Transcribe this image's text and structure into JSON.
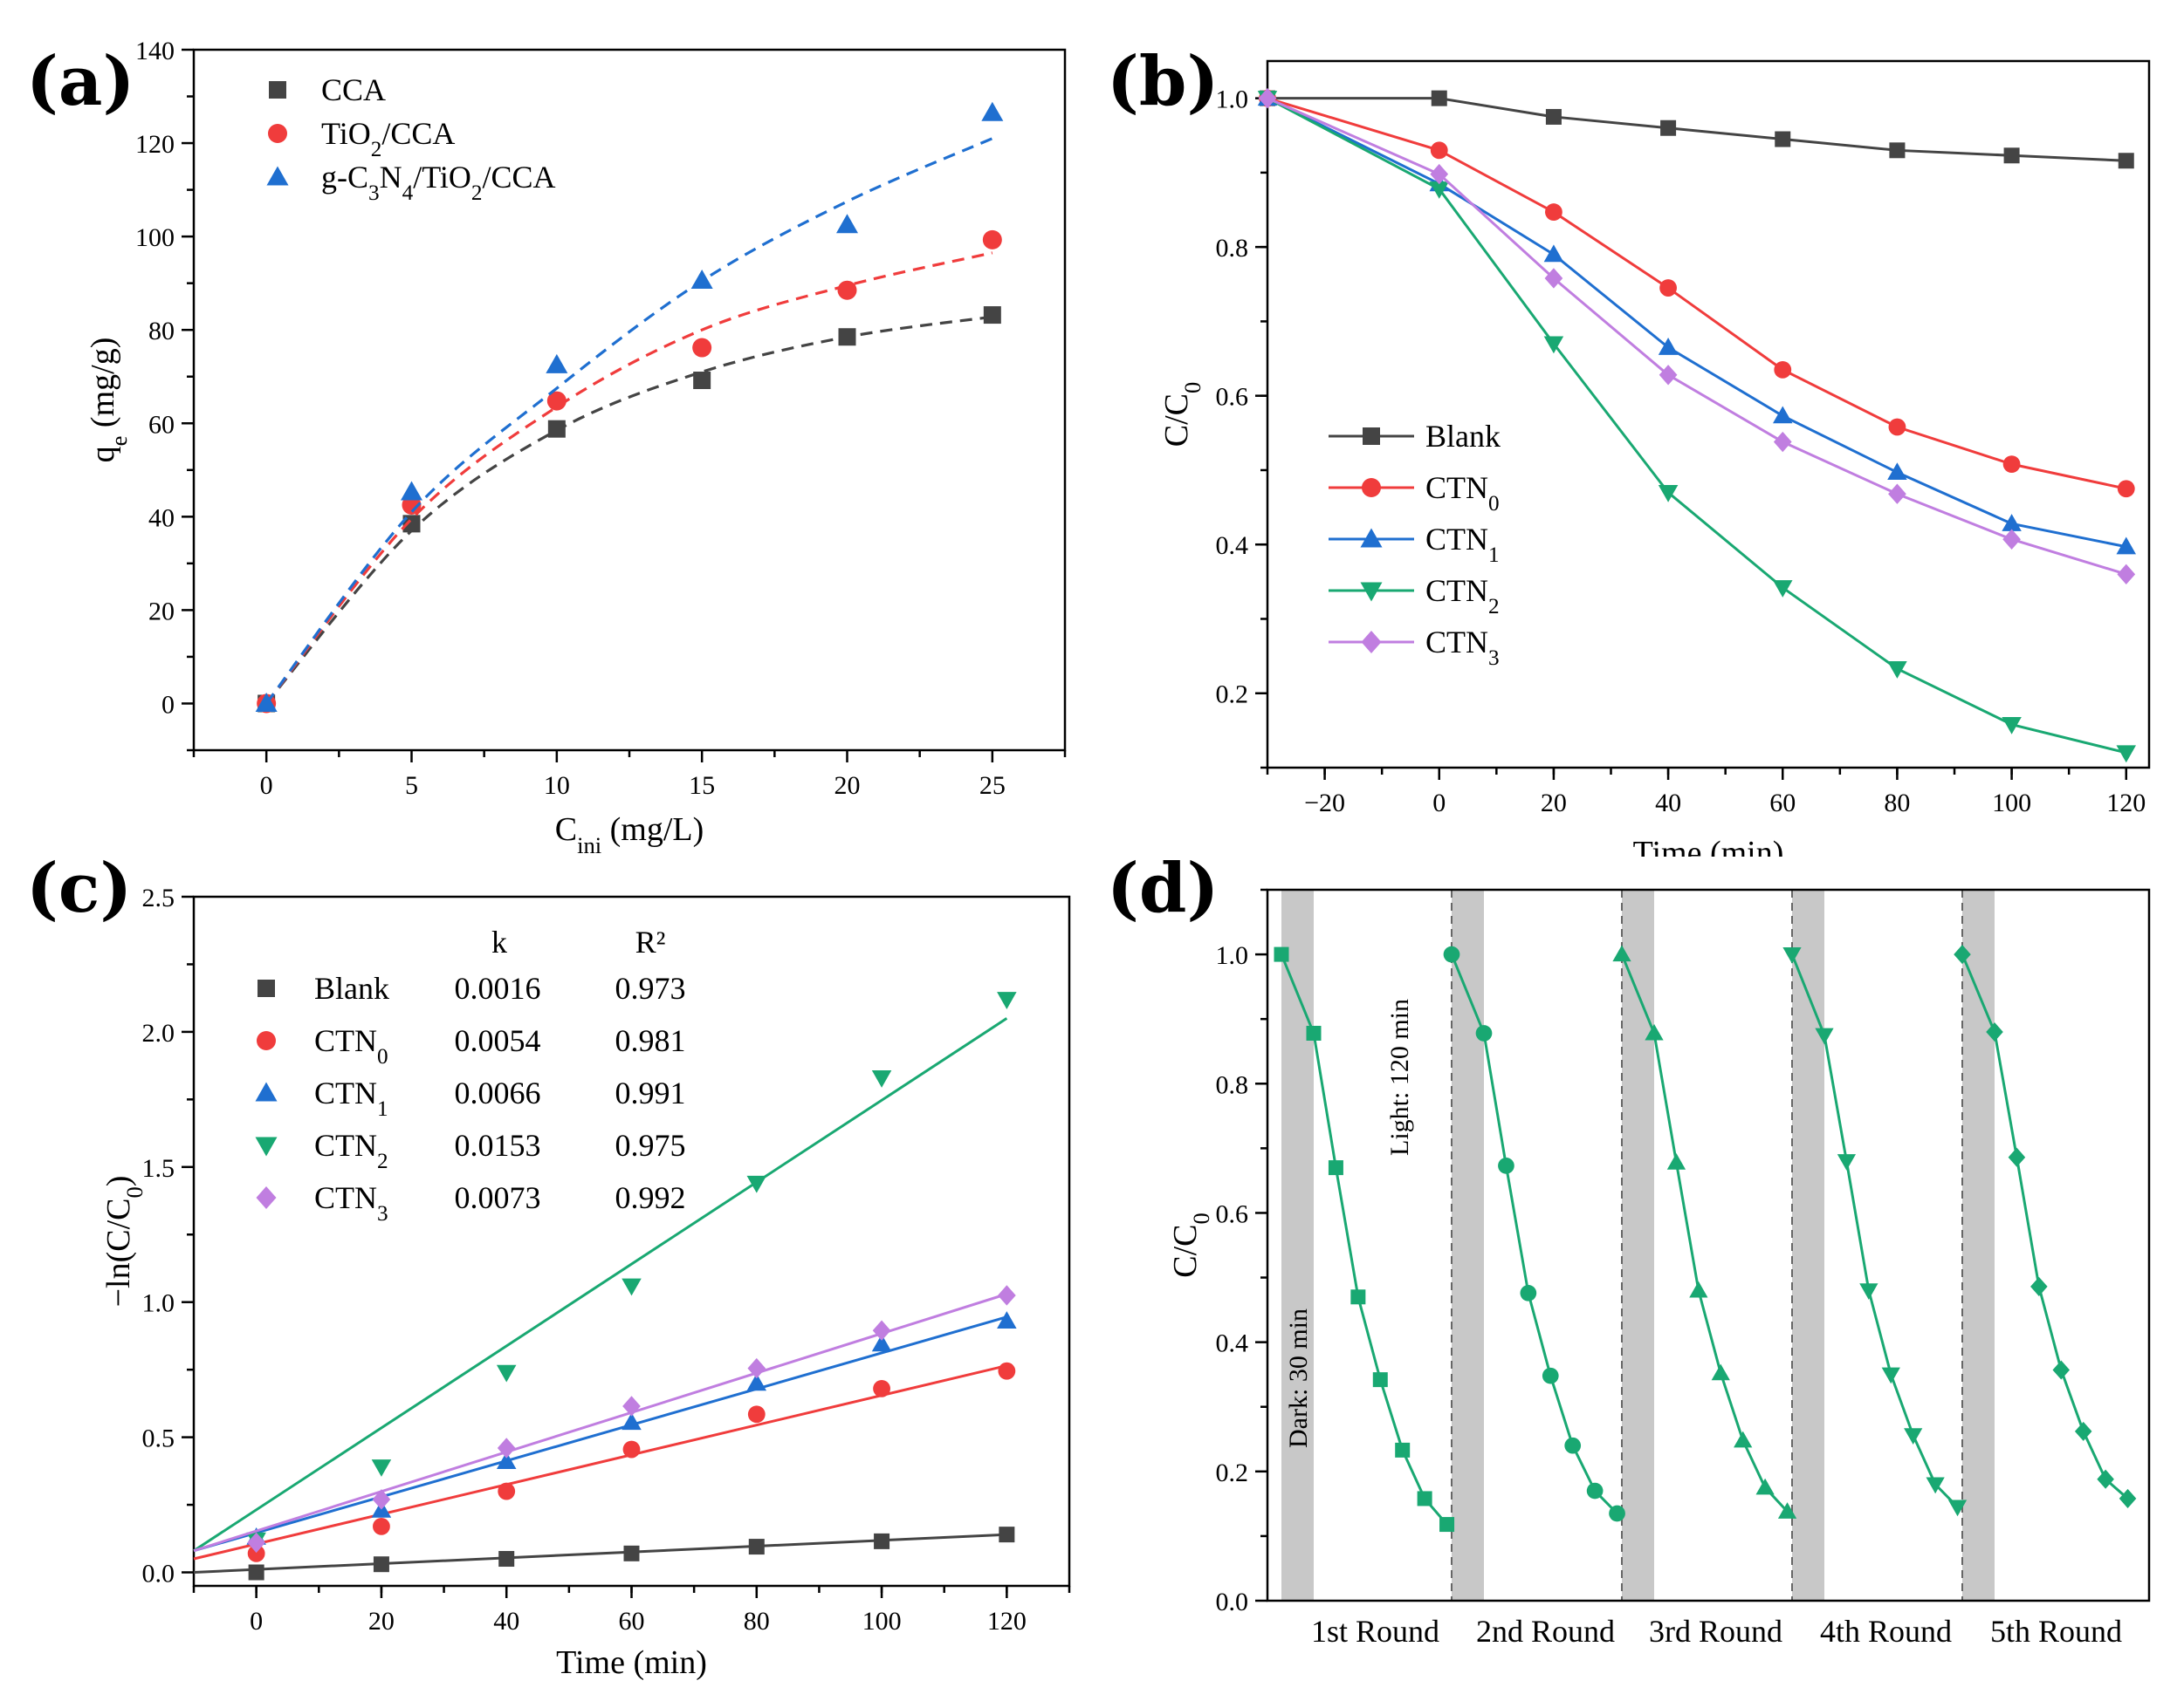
{
  "colors": {
    "black": "#444444",
    "red": "#f03c3c",
    "blue": "#1f6fd0",
    "green": "#19a872",
    "purple": "#c07ee0",
    "shade": "#c8c8c8"
  },
  "chart_data": [
    {
      "id": "a",
      "panel_label": "(a)",
      "type": "scatter",
      "xlabel": "C_ini (mg/L)",
      "ylabel": "q_e (mg/g)",
      "xlim": [
        -2.5,
        27.5
      ],
      "ylim": [
        -10,
        140
      ],
      "xticks": [
        "0",
        "5",
        "10",
        "15",
        "20",
        "25"
      ],
      "yticks": [
        "0",
        "20",
        "40",
        "60",
        "80",
        "100",
        "120",
        "140"
      ],
      "x": [
        0,
        5,
        10,
        15,
        20,
        25
      ],
      "legend_position": "top-left",
      "series": [
        {
          "name": "CCA",
          "marker": "square",
          "color": "#444444",
          "values": [
            0,
            38.5,
            58.8,
            69.2,
            78.5,
            83.2
          ],
          "fit": [
            0,
            37.0,
            58.5,
            71.0,
            78.5,
            82.8
          ]
        },
        {
          "name": "TiO2/CCA",
          "marker": "circle",
          "color": "#f03c3c",
          "values": [
            0,
            42.5,
            64.8,
            76.2,
            88.5,
            99.3
          ],
          "fit": [
            0,
            39.5,
            63.5,
            80.0,
            89.5,
            96.5
          ]
        },
        {
          "name": "g-C3N4/TiO2/CCA",
          "marker": "triangle-up",
          "color": "#1f6fd0",
          "values": [
            0,
            45.3,
            72.5,
            90.6,
            102.5,
            126.5
          ],
          "fit": [
            0,
            41.0,
            67.5,
            90.5,
            107.5,
            121.0
          ]
        }
      ]
    },
    {
      "id": "b",
      "panel_label": "(b)",
      "type": "line",
      "xlabel": "Time (min)",
      "ylabel": "C/C0",
      "xlim": [
        -30,
        124
      ],
      "ylim": [
        0.1,
        1.05
      ],
      "xticks": [
        "−20",
        "0",
        "20",
        "40",
        "60",
        "80",
        "100",
        "120"
      ],
      "yticks": [
        "0.2",
        "0.4",
        "0.6",
        "0.8",
        "1.0"
      ],
      "x": [
        -30,
        0,
        20,
        40,
        60,
        80,
        100,
        120
      ],
      "legend_position": "bottom-left",
      "series": [
        {
          "name": "Blank",
          "marker": "square",
          "color": "#444444",
          "values": [
            1.0,
            1.0,
            0.975,
            0.96,
            0.945,
            0.93,
            0.923,
            0.916
          ]
        },
        {
          "name": "CTN0",
          "marker": "circle",
          "color": "#f03c3c",
          "values": [
            1.0,
            0.93,
            0.847,
            0.745,
            0.635,
            0.558,
            0.508,
            0.475
          ]
        },
        {
          "name": "CTN1",
          "marker": "triangle-up",
          "color": "#1f6fd0",
          "values": [
            1.0,
            0.885,
            0.79,
            0.665,
            0.573,
            0.497,
            0.428,
            0.397
          ]
        },
        {
          "name": "CTN2",
          "marker": "triangle-down",
          "color": "#19a872",
          "values": [
            1.0,
            0.878,
            0.67,
            0.47,
            0.342,
            0.233,
            0.158,
            0.12
          ]
        },
        {
          "name": "CTN3",
          "marker": "diamond",
          "color": "#c07ee0",
          "values": [
            1.0,
            0.898,
            0.758,
            0.628,
            0.538,
            0.468,
            0.407,
            0.36
          ]
        }
      ]
    },
    {
      "id": "c",
      "panel_label": "(c)",
      "type": "scatter",
      "xlabel": "Time (min)",
      "ylabel": "−ln(C/C0)",
      "xlim": [
        -10,
        130
      ],
      "ylim": [
        -0.05,
        2.5
      ],
      "xticks": [
        "0",
        "20",
        "40",
        "60",
        "80",
        "100",
        "120"
      ],
      "yticks": [
        "0.0",
        "0.5",
        "1.0",
        "1.5",
        "2.0",
        "2.5"
      ],
      "x": [
        0,
        20,
        40,
        60,
        80,
        100,
        120
      ],
      "legend_position": "top-left",
      "legend_headers": {
        "k": "k",
        "r2": "R²"
      },
      "series": [
        {
          "name": "Blank",
          "marker": "square",
          "color": "#444444",
          "k": "0.0016",
          "r2": "0.973",
          "values": [
            0.0,
            0.03,
            0.05,
            0.07,
            0.095,
            0.115,
            0.14
          ],
          "fit_line": [
            [
              -10,
              0.0
            ],
            [
              120,
              0.14
            ]
          ]
        },
        {
          "name": "CTN0",
          "marker": "circle",
          "color": "#f03c3c",
          "k": "0.0054",
          "r2": "0.981",
          "values": [
            0.07,
            0.17,
            0.3,
            0.455,
            0.585,
            0.68,
            0.745
          ],
          "fit_line": [
            [
              -10,
              0.05
            ],
            [
              120,
              0.765
            ]
          ]
        },
        {
          "name": "CTN1",
          "marker": "triangle-up",
          "color": "#1f6fd0",
          "k": "0.0066",
          "r2": "0.991",
          "values": [
            0.13,
            0.23,
            0.41,
            0.555,
            0.7,
            0.845,
            0.93
          ],
          "fit_line": [
            [
              -10,
              0.08
            ],
            [
              120,
              0.945
            ]
          ]
        },
        {
          "name": "CTN2",
          "marker": "triangle-down",
          "color": "#19a872",
          "k": "0.0153",
          "r2": "0.975",
          "values": [
            0.12,
            0.39,
            0.74,
            1.06,
            1.44,
            1.83,
            2.12
          ],
          "fit_line": [
            [
              -10,
              0.08
            ],
            [
              120,
              2.05
            ]
          ]
        },
        {
          "name": "CTN3",
          "marker": "diamond",
          "color": "#c07ee0",
          "k": "0.0073",
          "r2": "0.992",
          "values": [
            0.11,
            0.27,
            0.46,
            0.615,
            0.755,
            0.895,
            1.025
          ],
          "fit_line": [
            [
              -10,
              0.08
            ],
            [
              120,
              1.03
            ]
          ]
        }
      ]
    },
    {
      "id": "d",
      "panel_label": "(d)",
      "type": "line",
      "xlabel": "",
      "ylabel": "C/C0",
      "ylim": [
        0.0,
        1.1
      ],
      "yticks": [
        "0.0",
        "0.2",
        "0.4",
        "0.6",
        "0.8",
        "1.0"
      ],
      "color": "#19a872",
      "dark_label": "Dark: 30 min",
      "light_label": "Light: 120 min",
      "rounds": [
        {
          "label": "1st Round",
          "marker": "square",
          "values": [
            1.0,
            0.878,
            0.67,
            0.47,
            0.342,
            0.233,
            0.158,
            0.118
          ]
        },
        {
          "label": "2nd Round",
          "marker": "circle",
          "values": [
            1.0,
            0.878,
            0.673,
            0.476,
            0.348,
            0.24,
            0.17,
            0.135
          ]
        },
        {
          "label": "3rd Round",
          "marker": "triangle-up",
          "values": [
            1.0,
            0.878,
            0.678,
            0.48,
            0.352,
            0.248,
            0.175,
            0.138
          ]
        },
        {
          "label": "4th Round",
          "marker": "triangle-down",
          "values": [
            1.0,
            0.875,
            0.68,
            0.48,
            0.35,
            0.256,
            0.18,
            0.145
          ]
        },
        {
          "label": "5th Round",
          "marker": "diamond",
          "values": [
            1.0,
            0.88,
            0.686,
            0.486,
            0.357,
            0.262,
            0.188,
            0.158
          ]
        }
      ]
    }
  ]
}
